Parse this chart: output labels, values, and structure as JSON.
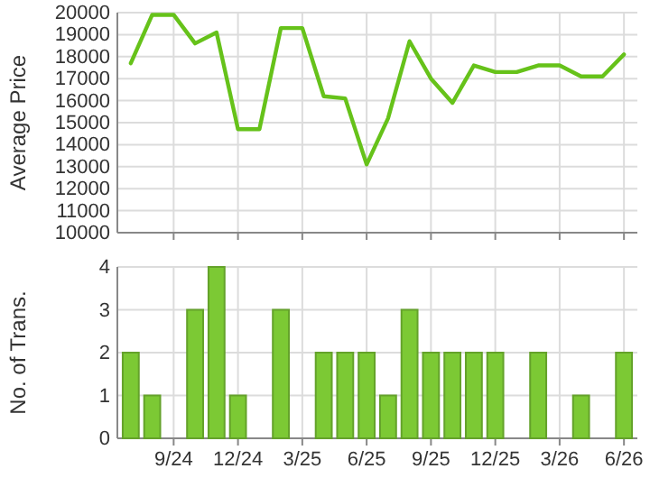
{
  "chart_data": [
    {
      "type": "line",
      "ylabel": "Average Price",
      "categories": [
        null,
        null,
        null,
        null,
        null,
        null,
        null,
        null,
        null,
        null,
        null,
        null,
        null,
        null,
        null,
        null,
        null,
        null,
        null,
        null,
        null,
        null,
        null,
        null
      ],
      "series": [
        {
          "color": "#66c21a",
          "line_style": "solid",
          "values": [
            17700,
            19900,
            19900,
            18600,
            19100,
            14700,
            14700,
            19300,
            19300,
            16200,
            16100,
            13100,
            15200,
            18700,
            17000,
            15900,
            17600,
            17300,
            17300,
            17600,
            17600,
            17100,
            17100,
            18100
          ]
        }
      ],
      "ylim": [
        10000,
        20000
      ],
      "yticks": [
        10000,
        11000,
        12000,
        13000,
        14000,
        15000,
        16000,
        17000,
        18000,
        19000,
        20000
      ],
      "grid": true,
      "tick_labels": "y"
    },
    {
      "type": "bar",
      "ylabel": "No. of Trans.",
      "categories": [
        null,
        null,
        "9/24",
        null,
        null,
        "12/24",
        null,
        null,
        "3/25",
        null,
        null,
        "6/25",
        null,
        null,
        "9/25",
        null,
        null,
        "12/25",
        null,
        null,
        "3/26",
        null,
        null,
        "6/26"
      ],
      "values": [
        2,
        1,
        0,
        3,
        4,
        1,
        0,
        3,
        0,
        2,
        2,
        2,
        1,
        3,
        2,
        2,
        2,
        2,
        0,
        2,
        0,
        1,
        0,
        2
      ],
      "color": "#7cc934",
      "ylim": [
        0,
        4
      ],
      "yticks": [
        0,
        1,
        2,
        3,
        4
      ],
      "grid": true
    }
  ]
}
